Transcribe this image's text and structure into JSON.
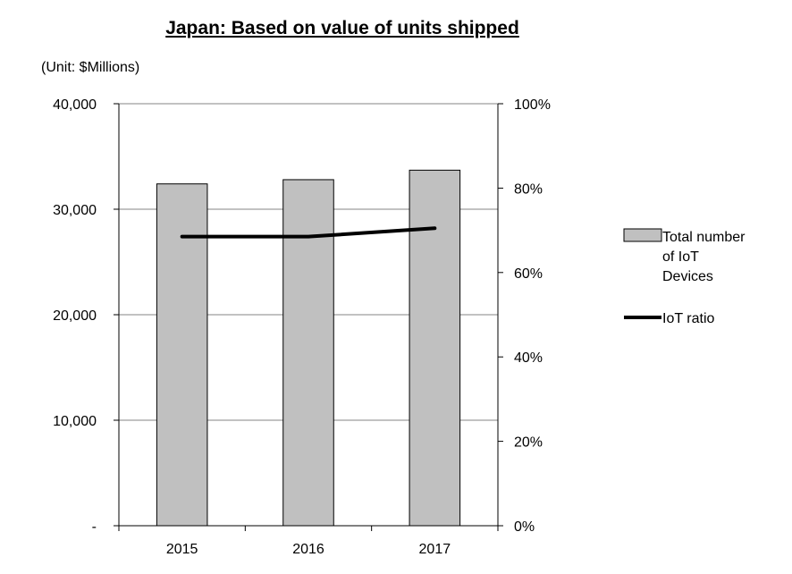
{
  "chart_data": {
    "type": "bar",
    "title": "Japan: Based on value of units shipped",
    "unit_note": "(Unit: $Millions)",
    "categories": [
      "2015",
      "2016",
      "2017"
    ],
    "series": [
      {
        "name": "Total number of IoT Devices",
        "type": "bar",
        "axis": "left",
        "values": [
          32400,
          32800,
          33700
        ],
        "color": "#c0c0c0"
      },
      {
        "name": "IoT ratio",
        "type": "line",
        "axis": "right",
        "values": [
          68.5,
          68.5,
          70.5
        ],
        "color": "#000000"
      }
    ],
    "y_left": {
      "ylim": [
        0,
        40000
      ],
      "ticks": [
        0,
        10000,
        20000,
        30000,
        40000
      ],
      "tick_labels": [
        "-",
        "10,000",
        "20,000",
        "30,000",
        "40,000"
      ]
    },
    "y_right": {
      "ylim": [
        0,
        100
      ],
      "ticks": [
        0,
        20,
        40,
        60,
        80,
        100
      ],
      "tick_labels": [
        "0%",
        "20%",
        "40%",
        "60%",
        "80%",
        "100%"
      ]
    },
    "grid": true,
    "legend_position": "right",
    "legend_lines": {
      "bar": [
        "Total number",
        "of IoT",
        "Devices"
      ],
      "line": [
        "IoT ratio"
      ]
    }
  }
}
